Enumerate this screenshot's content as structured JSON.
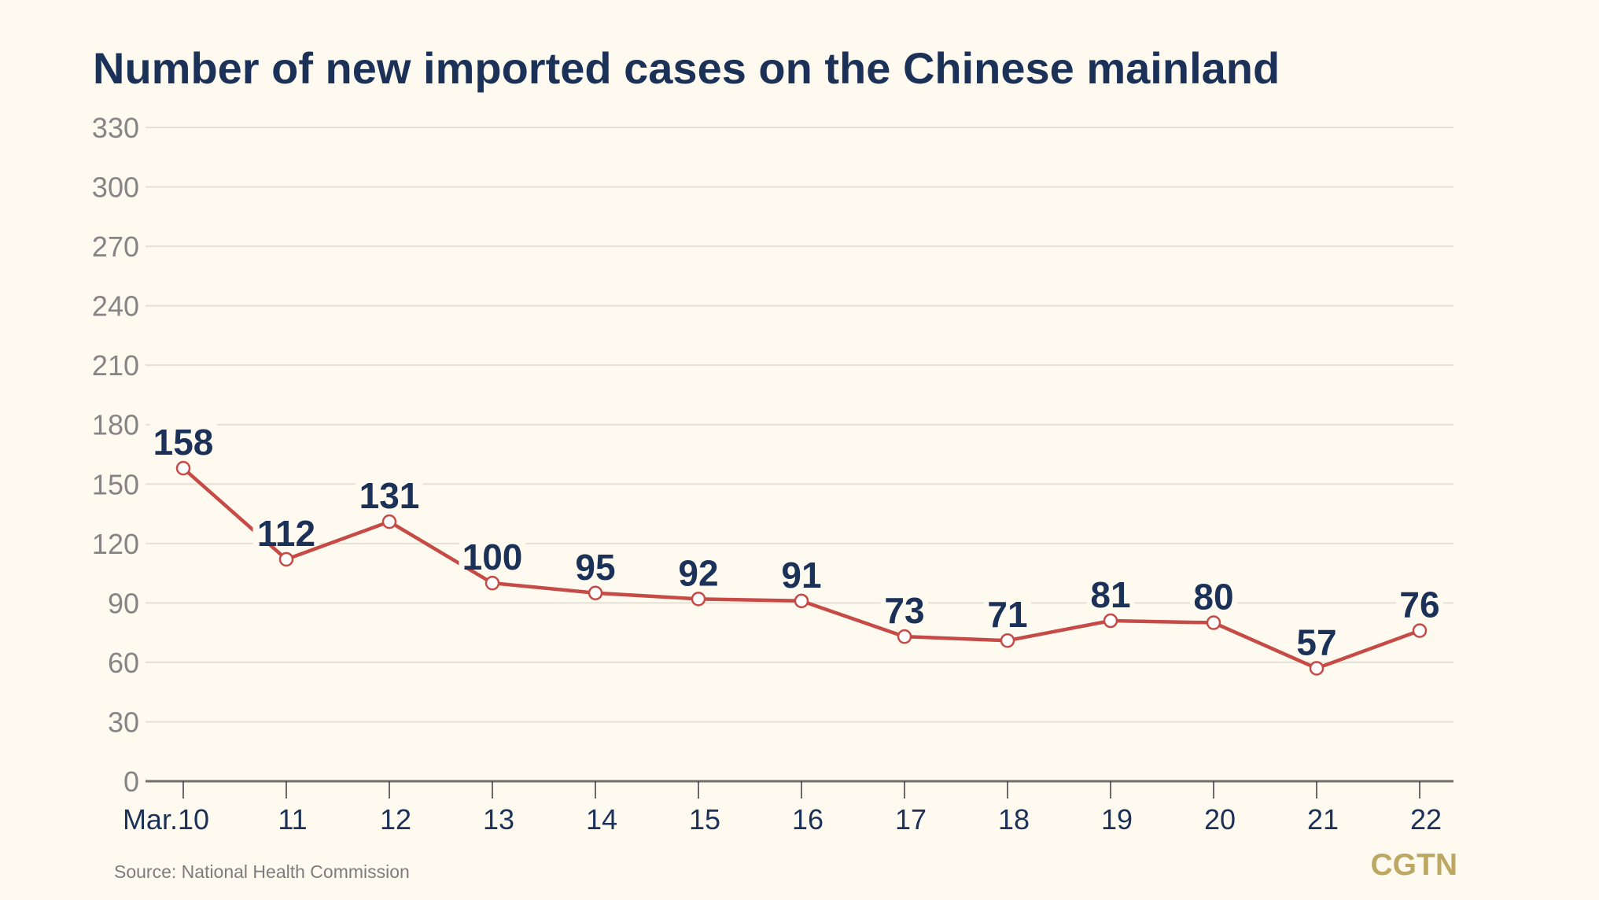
{
  "chart_data": {
    "type": "line",
    "title": "Number of new imported cases on the Chinese mainland",
    "xlabel": "",
    "ylabel": "",
    "categories": [
      "Mar.10",
      "11",
      "12",
      "13",
      "14",
      "15",
      "16",
      "17",
      "18",
      "19",
      "20",
      "21",
      "22"
    ],
    "series": [
      {
        "name": "New imported cases",
        "values": [
          158,
          112,
          131,
          100,
          95,
          92,
          91,
          73,
          71,
          81,
          80,
          57,
          76
        ],
        "color": "#C64A45"
      }
    ],
    "ylim": [
      0,
      330
    ],
    "yticks": [
      0,
      30,
      60,
      90,
      120,
      150,
      180,
      210,
      240,
      270,
      300,
      330
    ],
    "grid": true,
    "legend": "none",
    "data_labels": true
  },
  "footer": {
    "source": "Source: National Health Commission",
    "logo": "CGTN"
  },
  "colors": {
    "background": "#FEFAF0",
    "title": "#1B3158",
    "line": "#C64A45",
    "marker_fill": "#FFFFFF",
    "grid": "#E3E0D6",
    "axis": "#706E68",
    "ytick_text": "#858585",
    "logo": "#BCA862"
  }
}
